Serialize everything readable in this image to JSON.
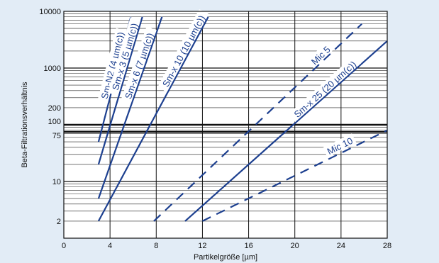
{
  "chart_data": {
    "type": "line",
    "xlabel": "Partikelgröße [µm]",
    "ylabel": "Beta-Filtrationsverhältnis",
    "xlim": [
      0,
      28
    ],
    "ylim": [
      1,
      10000
    ],
    "y_scale": "log",
    "grid": true,
    "x_ticks": [
      "0",
      "4",
      "8",
      "12",
      "16",
      "20",
      "24",
      "28"
    ],
    "y_ticks": [
      {
        "value": 2,
        "label": "2"
      },
      {
        "value": 10,
        "label": "10"
      },
      {
        "value": 75,
        "label": "75"
      },
      {
        "value": 100,
        "label": "100"
      },
      {
        "value": 200,
        "label": "200"
      },
      {
        "value": 1000,
        "label": "1000"
      },
      {
        "value": 10000,
        "label": "10000"
      }
    ],
    "colors": {
      "line": "#1c3f8f",
      "background": "#e2ecf6",
      "plot_area": "#ffffff"
    },
    "series": [
      {
        "name": "Sm-N2 (4 µm(c))",
        "style": "solid",
        "x": [
          3,
          5.8
        ],
        "y": [
          50,
          8000
        ]
      },
      {
        "name": "Sm-x 3 (5 µm(c))",
        "style": "solid",
        "x": [
          3,
          6.8
        ],
        "y": [
          20,
          8000
        ]
      },
      {
        "name": "Sm-x 6 (7 µm(c))",
        "style": "solid",
        "x": [
          3,
          8.5
        ],
        "y": [
          5,
          8000
        ]
      },
      {
        "name": "Sm-x 10 (10 µm(c))",
        "style": "solid",
        "x": [
          3,
          12.5
        ],
        "y": [
          2,
          8000
        ]
      },
      {
        "name": "Mic 5",
        "style": "dashed",
        "x": [
          7.8,
          25.8
        ],
        "y": [
          2,
          6000
        ]
      },
      {
        "name": "Sm-x 25 (20 µm(c))",
        "style": "solid",
        "x": [
          10.5,
          28
        ],
        "y": [
          2,
          3000
        ]
      },
      {
        "name": "Mic 10",
        "style": "dashed",
        "x": [
          12,
          28
        ],
        "y": [
          2,
          80
        ]
      }
    ]
  }
}
